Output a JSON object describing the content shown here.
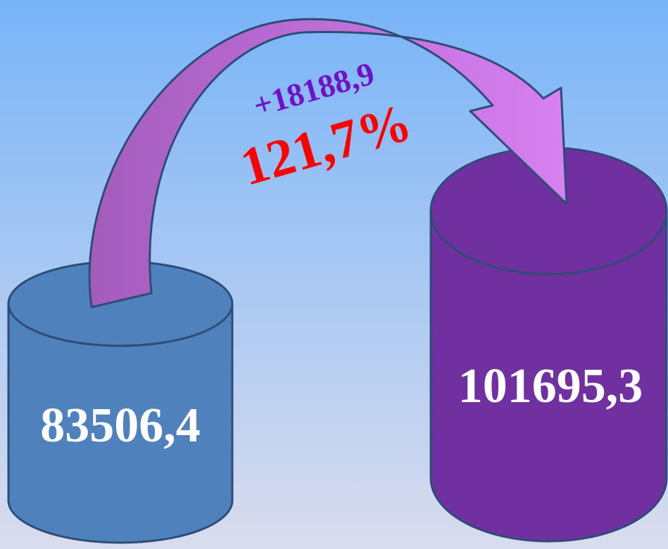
{
  "cylinders": [
    {
      "value": "83506,4"
    },
    {
      "value": "101695,3"
    }
  ],
  "arrow": {
    "difference": "+18188,9",
    "percent": "121,7%"
  }
}
